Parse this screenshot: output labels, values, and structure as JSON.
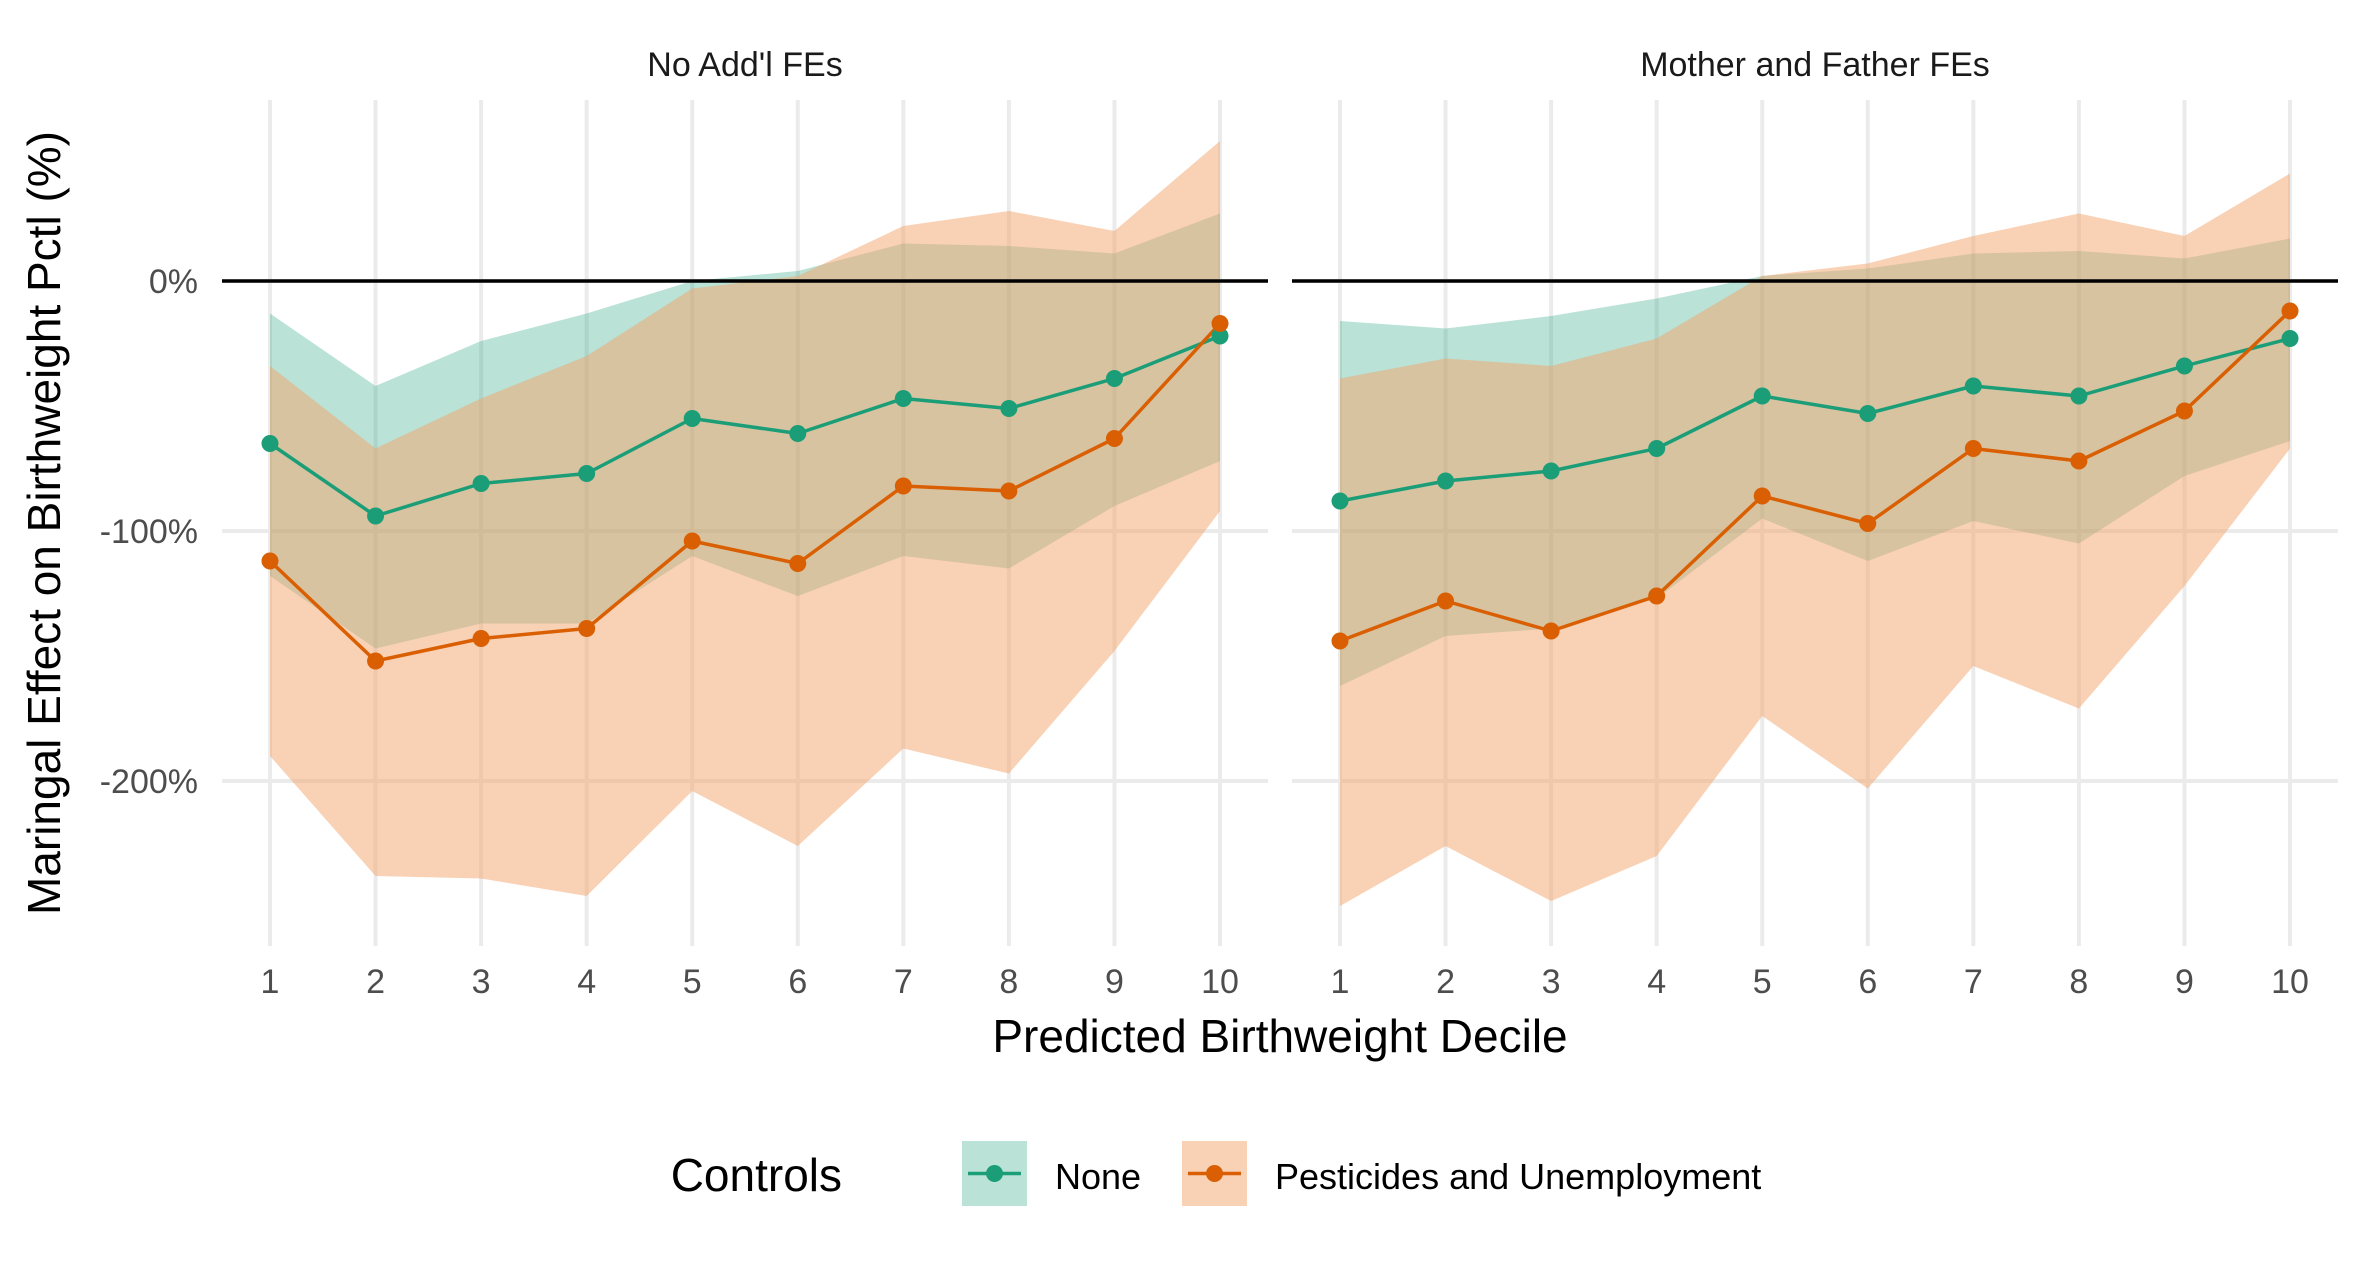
{
  "chart_data": {
    "type": "line",
    "xlabel": "Predicted Birthweight Decile",
    "ylabel": "Maringal Effect on Birthweight Pctl (%)",
    "x": [
      1,
      2,
      3,
      4,
      5,
      6,
      7,
      8,
      9,
      10
    ],
    "x_ticks": [
      "1",
      "2",
      "3",
      "4",
      "5",
      "6",
      "7",
      "8",
      "9",
      "10"
    ],
    "y_ticks": [
      {
        "value": 0,
        "label": "0%"
      },
      {
        "value": -100,
        "label": "-100%"
      },
      {
        "value": -200,
        "label": "-200%"
      }
    ],
    "ylim": [
      -265,
      58
    ],
    "reference_line": 0,
    "legend": {
      "title": "Controls",
      "position": "bottom",
      "entries": [
        "None",
        "Pesticides and Unemployment"
      ]
    },
    "colors": {
      "None": "#1b9e77",
      "Pesticides and Unemployment": "#d95f02",
      "None_ribbon": "#1b9e77",
      "Pesticides and Unemployment_ribbon": "#f4a36a"
    },
    "grid": true,
    "panels": [
      {
        "title": "No Add'l FEs",
        "series": [
          {
            "name": "None",
            "values": [
              -65,
              -94,
              -81,
              -77,
              -55,
              -61,
              -47,
              -51,
              -39,
              -22
            ],
            "lower": [
              -118,
              -147,
              -137,
              -137,
              -110,
              -126,
              -110,
              -115,
              -90,
              -72
            ],
            "upper": [
              -13,
              -42,
              -24,
              -13,
              0,
              4,
              15,
              14,
              11,
              27
            ]
          },
          {
            "name": "Pesticides and Unemployment",
            "values": [
              -112,
              -152,
              -143,
              -139,
              -104,
              -113,
              -82,
              -84,
              -63,
              -17
            ],
            "lower": [
              -190,
              -238,
              -239,
              -246,
              -204,
              -226,
              -187,
              -197,
              -148,
              -92
            ],
            "upper": [
              -34,
              -67,
              -47,
              -30,
              -3,
              2,
              22,
              28,
              20,
              56
            ]
          }
        ]
      },
      {
        "title": "Mother and Father FEs",
        "series": [
          {
            "name": "None",
            "values": [
              -88,
              -80,
              -76,
              -67,
              -46,
              -53,
              -42,
              -46,
              -34,
              -23
            ],
            "lower": [
              -162,
              -142,
              -139,
              -127,
              -95,
              -112,
              -96,
              -105,
              -78,
              -64
            ],
            "upper": [
              -16,
              -19,
              -14,
              -7,
              2,
              5,
              11,
              12,
              9,
              17
            ]
          },
          {
            "name": "Pesticides and Unemployment",
            "values": [
              -144,
              -128,
              -140,
              -126,
              -86,
              -97,
              -67,
              -72,
              -52,
              -12
            ],
            "lower": [
              -250,
              -226,
              -248,
              -230,
              -174,
              -203,
              -154,
              -171,
              -122,
              -67
            ],
            "upper": [
              -39,
              -31,
              -34,
              -23,
              2,
              7,
              18,
              27,
              18,
              43
            ]
          }
        ]
      }
    ]
  }
}
